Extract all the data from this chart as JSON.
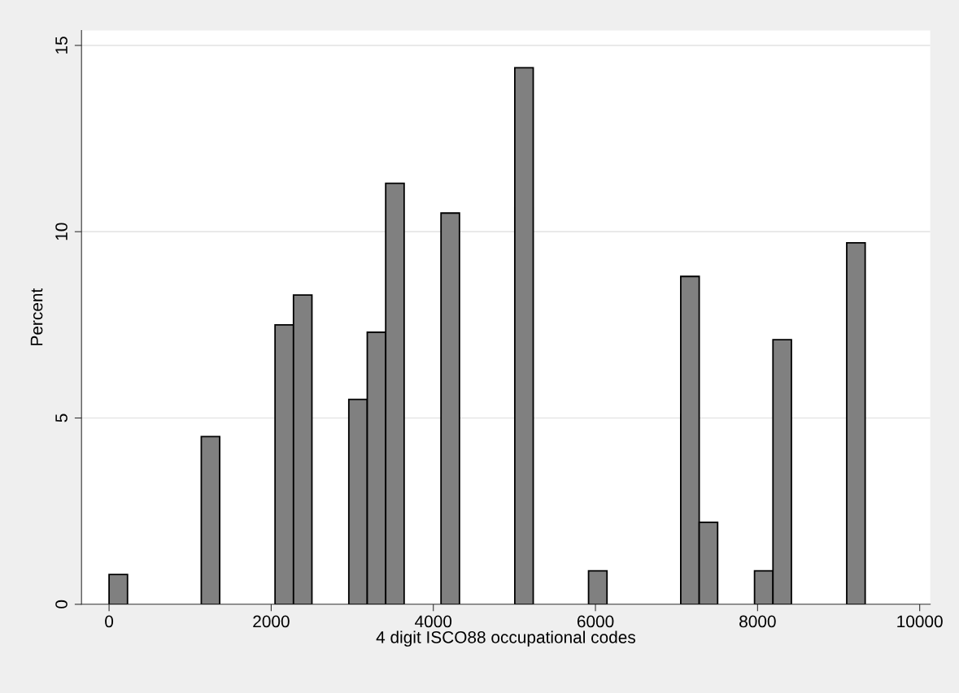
{
  "chart_data": {
    "type": "histogram",
    "xlabel": "4 digit ISCO88 occupational codes",
    "ylabel": "Percent",
    "bins": [
      0,
      227.5,
      455,
      682.5,
      910,
      1137.5,
      1365,
      1592.5,
      1820,
      2047.5,
      2275,
      2502.5,
      2730,
      2957.5,
      3185,
      3412.5,
      3640,
      3867.5,
      4095,
      4322.5,
      4550,
      4777.5,
      5005,
      5232.5,
      5460,
      5687.5,
      5915,
      6142.5,
      6370,
      6597.5,
      6825,
      7052.5,
      7280,
      7507.5,
      7735,
      7962.5,
      8190,
      8417.5,
      8645,
      8872.5,
      9100,
      9327.5
    ],
    "values": [
      0.8,
      0,
      0,
      0,
      0,
      4.5,
      0,
      0,
      0,
      7.5,
      8.3,
      0,
      0,
      5.5,
      7.3,
      11.3,
      0,
      0,
      10.5,
      0,
      0,
      0,
      14.4,
      0,
      0,
      0,
      0.9,
      0,
      0,
      0,
      0,
      8.8,
      2.2,
      0,
      0,
      0.9,
      7.1,
      0,
      0,
      0,
      9.7
    ],
    "color": "#808080",
    "xlim": [
      -340,
      10130
    ],
    "xticks": [
      0,
      2000,
      4000,
      6000,
      8000,
      10000
    ],
    "ylim": [
      0,
      15.4
    ],
    "yticks": [
      0,
      5,
      10,
      15
    ],
    "grid": "y"
  }
}
